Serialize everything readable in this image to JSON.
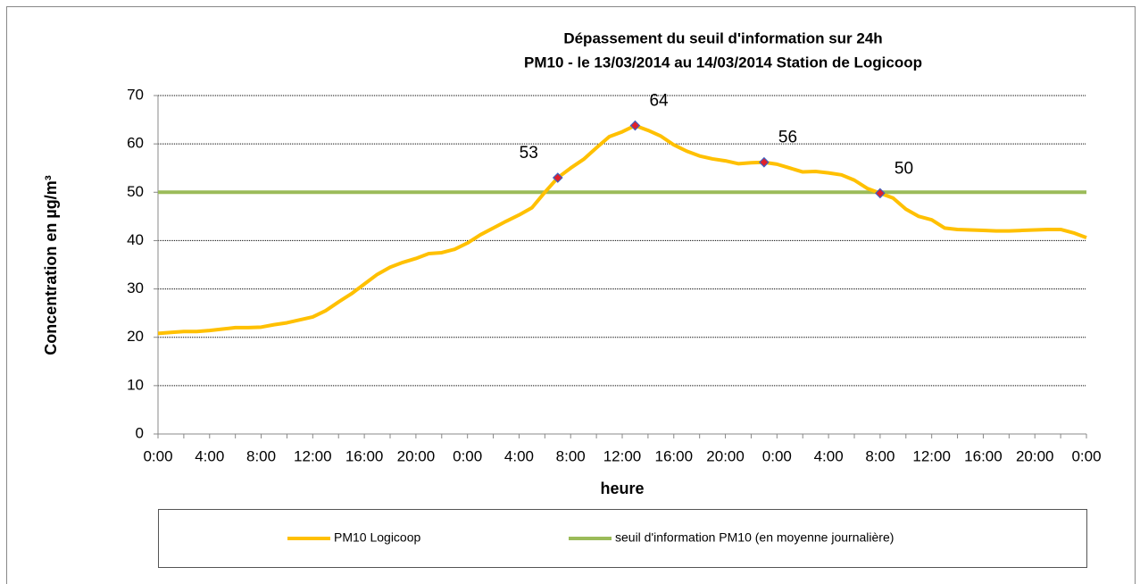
{
  "chart_data": {
    "type": "line",
    "title": "Dépassement du seuil d'information sur 24h",
    "subtitle": "PM10 - le 13/03/2014 au 14/03/2014 Station de Logicoop",
    "y_label": "Concentration en µg/m³",
    "x_label": "heure",
    "categories": [
      "0:00",
      null,
      null,
      null,
      "4:00",
      null,
      null,
      null,
      "8:00",
      null,
      null,
      null,
      "12:00",
      null,
      null,
      null,
      "16:00",
      null,
      null,
      null,
      "20:00",
      null,
      null,
      null,
      "0:00",
      null,
      null,
      null,
      "4:00",
      null,
      null,
      null,
      "8:00",
      null,
      null,
      null,
      "12:00",
      null,
      null,
      null,
      "16:00",
      null,
      null,
      null,
      "20:00",
      null,
      null,
      null,
      "0:00",
      null,
      null,
      null,
      "4:00",
      null,
      null,
      null,
      "8:00",
      null,
      null,
      null,
      "12:00",
      null,
      null,
      null,
      "16:00",
      null,
      null,
      null,
      "20:00",
      null,
      null,
      null,
      "0:00"
    ],
    "series": [
      {
        "name": "PM10 Logicoop",
        "color": "#ffc000",
        "values": [
          20.8,
          21,
          21.2,
          21.2,
          21.4,
          21.7,
          22,
          22,
          22.1,
          22.6,
          23,
          23.6,
          24.2,
          25.5,
          27.3,
          29,
          31,
          33,
          34.5,
          35.5,
          36.3,
          37.3,
          37.5,
          38.2,
          39.5,
          41.2,
          42.6,
          44,
          45.3,
          46.8,
          50,
          53,
          55,
          56.8,
          59.2,
          61.5,
          62.5,
          63.8,
          62.8,
          61.6,
          59.8,
          58.5,
          57.5,
          56.9,
          56.5,
          55.9,
          56.1,
          56.2,
          55.8,
          55,
          54.2,
          54.3,
          54,
          53.6,
          52.5,
          50.8,
          49.8,
          48.8,
          46.5,
          45,
          44.3,
          42.6,
          42.3,
          42.2,
          42.1,
          42,
          42,
          42.1,
          42.2,
          42.3,
          42.3,
          41.6,
          40.6
        ],
        "value_labels": [
          null,
          null,
          null,
          null,
          null,
          null,
          null,
          null,
          null,
          null,
          null,
          null,
          null,
          null,
          null,
          null,
          null,
          null,
          null,
          null,
          null,
          null,
          null,
          null,
          null,
          null,
          null,
          null,
          null,
          null,
          null,
          "53",
          null,
          null,
          null,
          null,
          null,
          "64",
          null,
          null,
          null,
          null,
          null,
          null,
          null,
          null,
          null,
          "56",
          null,
          null,
          null,
          null,
          null,
          null,
          null,
          null,
          "50",
          null,
          null,
          null,
          null,
          null,
          null,
          null,
          null,
          null,
          null,
          null,
          null,
          null,
          null,
          null,
          null
        ]
      },
      {
        "name": "seuil d'information PM10 (en moyenne journalière)",
        "color": "#9bbb59",
        "values": [
          50,
          50,
          50,
          50,
          50,
          50,
          50,
          50,
          50,
          50,
          50,
          50,
          50,
          50,
          50,
          50,
          50,
          50,
          50,
          50,
          50,
          50,
          50,
          50,
          50,
          50,
          50,
          50,
          50,
          50,
          50,
          50,
          50,
          50,
          50,
          50,
          50,
          50,
          50,
          50,
          50,
          50,
          50,
          50,
          50,
          50,
          50,
          50,
          50,
          50,
          50,
          50,
          50,
          50,
          50,
          50,
          50,
          50,
          50,
          50,
          50,
          50,
          50,
          50,
          50,
          50,
          50,
          50,
          50,
          50,
          50,
          50,
          50
        ]
      }
    ],
    "ylim": [
      0,
      70
    ],
    "yticks": [
      0,
      10,
      20,
      30,
      40,
      50,
      60,
      70
    ],
    "grid": true
  }
}
